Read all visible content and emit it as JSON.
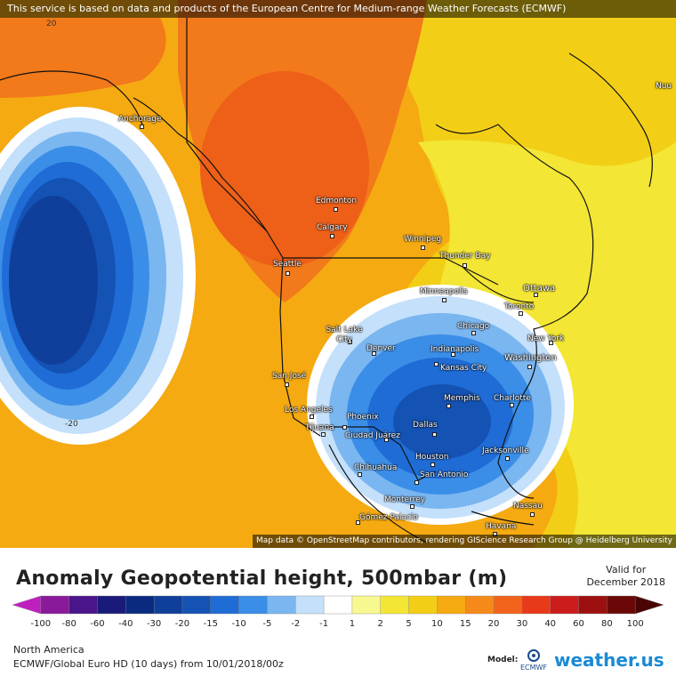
{
  "banner": "This service is based on data and products of the European Centre for Medium-range Weather Forecasts (ECMWF)",
  "attribution": "Map data © OpenStreetMap contributors, rendering GIScience Research Group @ Heidelberg University",
  "title": "Anomaly Geopotential height, 500mbar (m)",
  "valid_label": "Valid for",
  "valid_date": "December 2018",
  "region": "North America",
  "model_run": "ECMWF/Global Euro HD (10 days) from 10/01/2018/00z",
  "model_label": "Model:",
  "ecmwf_logo_text": "ECMWF",
  "brand": "weather.us",
  "contour_labels": [
    "20",
    "-20"
  ],
  "cities": [
    "Anchorage",
    "Edmonton",
    "Calgary",
    "Winnipeg",
    "Thunder Bay",
    "Seattle",
    "Minneapolis",
    "Ottawa",
    "Toronto",
    "Salt Lake City",
    "Chicago",
    "New York",
    "Denver",
    "Indianapolis",
    "Washington",
    "Kansas City",
    "San José",
    "Memphis",
    "Charlotte",
    "Los Angeles",
    "Phoenix",
    "Dallas",
    "Tijuana",
    "Ciudad Juárez",
    "Jacksonville",
    "Houston",
    "Chihuahua",
    "San Antonio",
    "Monterrey",
    "Nassau",
    "Gómez Palacio",
    "Havana",
    "Nuu"
  ],
  "scale": {
    "ticks": [
      "-100",
      "-80",
      "-60",
      "-40",
      "-30",
      "-20",
      "-15",
      "-10",
      "-5",
      "-2",
      "-1",
      "1",
      "2",
      "5",
      "10",
      "15",
      "20",
      "30",
      "40",
      "60",
      "80",
      "100"
    ],
    "colors": [
      "#c01fc0",
      "#8a1a9a",
      "#4a148a",
      "#1a1a7a",
      "#0a2a80",
      "#0f3f9a",
      "#1452b4",
      "#1f6cd6",
      "#3b8ee8",
      "#7ab6f0",
      "#c4e0fa",
      "#ffffff",
      "#f8f890",
      "#f3e634",
      "#f2cf16",
      "#f5aa12",
      "#f58a1a",
      "#f2641c",
      "#e83a1a",
      "#cc1c1c",
      "#9c1010",
      "#6a0808",
      "#4a0404"
    ]
  },
  "colors": {
    "deep_negative": "#0b3d8c",
    "negative": "#2f7fe0",
    "light_negative": "#a8cff5",
    "near_zero": "#ffffff",
    "slight_positive": "#f3e634",
    "positive": "#f5aa12",
    "strong_positive": "#f06a1a",
    "max_positive": "#e8521a",
    "brand": "#1a8ad4"
  }
}
